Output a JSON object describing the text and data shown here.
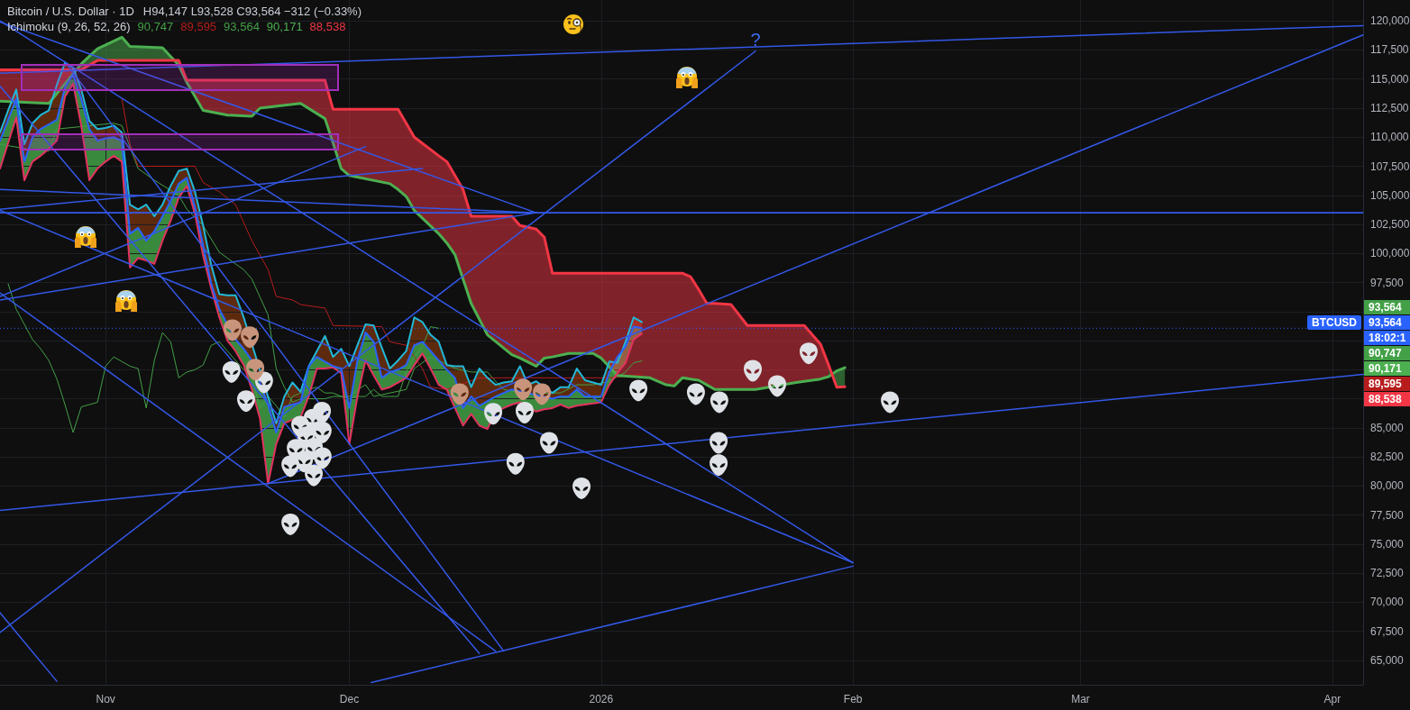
{
  "chart_data": {
    "type": "line",
    "title": "Bitcoin / U.S. Dollar · 1D",
    "subtitle": "H94,147 L93,528 C93,564 −312 (−0.33%)",
    "grid": true,
    "xlim": [
      "2025-10-19",
      "2026-04-04T19:00"
    ],
    "ylim": [
      62900,
      121800
    ],
    "xticks": [
      {
        "value": "2025-11-01",
        "label": "Nov"
      },
      {
        "value": "2025-12-01",
        "label": "Dec"
      },
      {
        "value": "2026-01-01",
        "label": "2026"
      },
      {
        "value": "2026-02-01",
        "label": "Feb"
      },
      {
        "value": "2026-03-01",
        "label": "Mar"
      },
      {
        "value": "2026-04-01",
        "label": "Apr"
      }
    ],
    "yticks": [
      {
        "value": 65000,
        "label": "65,000"
      },
      {
        "value": 67500,
        "label": "67,500"
      },
      {
        "value": 70000,
        "label": "70,000"
      },
      {
        "value": 72500,
        "label": "72,500"
      },
      {
        "value": 75000,
        "label": "75,000"
      },
      {
        "value": 77500,
        "label": "77,500"
      },
      {
        "value": 80000,
        "label": "80,000"
      },
      {
        "value": 82500,
        "label": "82,500"
      },
      {
        "value": 85000,
        "label": "85,000"
      },
      {
        "value": 87500,
        "label": null
      },
      {
        "value": 90000,
        "label": null
      },
      {
        "value": 92500,
        "label": null
      },
      {
        "value": 95000,
        "label": null
      },
      {
        "value": 97500,
        "label": "97,500"
      },
      {
        "value": 100000,
        "label": "100,000"
      },
      {
        "value": 102500,
        "label": "102,500"
      },
      {
        "value": 105000,
        "label": "105,000"
      },
      {
        "value": 107500,
        "label": "107,500"
      },
      {
        "value": 110000,
        "label": "110,000"
      },
      {
        "value": 112500,
        "label": "112,500"
      },
      {
        "value": 115000,
        "label": "115,000"
      },
      {
        "value": 117500,
        "label": "117,500"
      },
      {
        "value": 120000,
        "label": "120,000"
      }
    ],
    "series": [
      {
        "color": "#43a047",
        "x": [
          "2025-10-19",
          "2025-10-23",
          "2025-10-25",
          "2025-10-26",
          "2025-11-02",
          "2025-11-03",
          "2025-11-05",
          "2025-11-07",
          "2025-11-10",
          "2025-11-11",
          "2025-11-13",
          "2025-11-15",
          "2025-11-18",
          "2025-11-19",
          "2025-11-21",
          "2025-11-22",
          "2025-11-23",
          "2025-11-24",
          "2025-11-25",
          "2025-11-28",
          "2025-11-29",
          "2025-12-01",
          "2025-12-02",
          "2025-12-03",
          "2025-12-04",
          "2025-12-06",
          "2025-12-08",
          "2025-12-09",
          "2025-12-11",
          "2025-12-12",
          "2025-12-14",
          "2025-12-16",
          "2025-12-18",
          "2025-12-19",
          "2025-12-20",
          "2025-12-23",
          "2025-12-26",
          "2025-12-27",
          "2025-12-29",
          "2025-12-31",
          "2026-01-02",
          "2026-01-04",
          "2026-01-05",
          "2026-01-06"
        ],
        "values": [
          109400,
          108900,
          108800,
          110700,
          111200,
          111000,
          107300,
          106300,
          105000,
          103800,
          102400,
          100100,
          98600,
          97800,
          94700,
          90100,
          88500,
          87200,
          87500,
          87500,
          87700,
          87700,
          88300,
          88700,
          87700,
          88000,
          88300,
          90100,
          91100,
          90800,
          90100,
          89800,
          89800,
          89000,
          88300,
          87900,
          88000,
          88000,
          88700,
          88700,
          89000,
          89800,
          90600,
          90747
        ]
      },
      {
        "color": "#b71c1c",
        "x": [
          "2025-11-03",
          "2025-11-04",
          "2025-11-05",
          "2025-11-12",
          "2025-11-13",
          "2025-11-15",
          "2025-11-17",
          "2025-11-19",
          "2025-11-21",
          "2025-11-22",
          "2025-11-24",
          "2025-11-25",
          "2025-11-28",
          "2025-11-29",
          "2025-12-05",
          "2025-12-06",
          "2025-12-08",
          "2025-12-10",
          "2025-12-11",
          "2025-12-13",
          "2025-12-17",
          "2026-01-02",
          "2026-01-06"
        ],
        "values": [
          113300,
          109400,
          107500,
          107500,
          106100,
          105300,
          104200,
          101100,
          98600,
          96300,
          96000,
          95600,
          95300,
          93800,
          93700,
          92400,
          92100,
          90100,
          88500,
          88300,
          89300,
          89300,
          89595
        ]
      },
      {
        "color": "#43a047",
        "x": [
          "2025-10-20",
          "2025-10-21",
          "2025-10-22",
          "2025-10-23",
          "2025-10-24",
          "2025-10-25",
          "2025-10-26",
          "2025-10-27",
          "2025-10-28",
          "2025-10-29",
          "2025-10-30",
          "2025-10-31",
          "2025-11-01",
          "2025-11-02",
          "2025-11-03",
          "2025-11-04",
          "2025-11-05",
          "2025-11-06",
          "2025-11-07",
          "2025-11-08",
          "2025-11-09",
          "2025-11-10",
          "2025-11-11",
          "2025-11-12",
          "2025-11-13",
          "2025-11-14",
          "2025-11-15",
          "2025-11-16",
          "2025-11-17",
          "2025-11-18",
          "2025-11-19",
          "2025-11-20",
          "2025-11-21",
          "2025-11-22",
          "2025-11-23",
          "2025-11-24",
          "2025-11-25",
          "2025-11-26",
          "2025-11-27",
          "2025-11-28",
          "2025-11-29",
          "2025-11-30",
          "2025-12-01",
          "2025-12-02",
          "2025-12-03",
          "2025-12-04",
          "2025-12-05",
          "2025-12-06",
          "2025-12-07",
          "2025-12-08",
          "2025-12-09",
          "2025-12-10",
          "2025-12-11",
          "2025-12-12"
        ],
        "values": [
          97400,
          95200,
          93900,
          92600,
          91800,
          90800,
          89200,
          87000,
          84600,
          86800,
          87000,
          87200,
          90300,
          91100,
          90700,
          90300,
          90100,
          86700,
          90800,
          93200,
          92400,
          89300,
          89800,
          90000,
          90400,
          92100,
          92400,
          91600,
          90800,
          90000,
          89300,
          86700,
          87700,
          86900,
          85900,
          87700,
          88000,
          88300,
          88500,
          88000,
          88000,
          87700,
          87500,
          87700,
          87700,
          88300,
          87700,
          87700,
          87700,
          89800,
          91100,
          92000,
          93700,
          93564
        ]
      },
      {
        "color": "#4caf50",
        "x": [
          "2025-10-19",
          "2025-10-25",
          "2025-10-29",
          "2025-10-31",
          "2025-11-03",
          "2025-11-04",
          "2025-11-08",
          "2025-11-10",
          "2025-11-11",
          "2025-11-13",
          "2025-11-16",
          "2025-11-19",
          "2025-11-20",
          "2025-11-25",
          "2025-11-28",
          "2025-11-29",
          "2025-11-30",
          "2025-12-01",
          "2025-12-06",
          "2025-12-07",
          "2025-12-08",
          "2025-12-09",
          "2025-12-12",
          "2025-12-13",
          "2025-12-14",
          "2025-12-15",
          "2025-12-16",
          "2025-12-18",
          "2025-12-21",
          "2025-12-22",
          "2025-12-24",
          "2025-12-25",
          "2025-12-26",
          "2025-12-28",
          "2025-12-31",
          "2026-01-01",
          "2026-01-03",
          "2026-01-07",
          "2026-01-09",
          "2026-01-10",
          "2026-01-11",
          "2026-01-12",
          "2026-01-13",
          "2026-01-14",
          "2026-01-15",
          "2026-01-17",
          "2026-01-19",
          "2026-01-20",
          "2026-01-25",
          "2026-01-26",
          "2026-01-28",
          "2026-01-29",
          "2026-01-30",
          "2026-01-31"
        ],
        "values": [
          113100,
          112900,
          116300,
          117600,
          118600,
          117800,
          117700,
          116200,
          114700,
          112300,
          111900,
          111800,
          112500,
          112900,
          111600,
          109500,
          107300,
          106700,
          106000,
          105500,
          104900,
          103700,
          101700,
          100900,
          99900,
          97800,
          95700,
          93000,
          91300,
          91000,
          90300,
          91000,
          91100,
          91400,
          91400,
          91000,
          89500,
          89300,
          88700,
          88600,
          89300,
          89200,
          89100,
          88700,
          88300,
          88300,
          88300,
          88300,
          88900,
          89000,
          89200,
          89400,
          89900,
          90171
        ],
        "upper": [
          null,
          null,
          116300,
          117600,
          118600,
          117800,
          117700,
          116200,
          null,
          null,
          null,
          null,
          null,
          null,
          null,
          null,
          null,
          null,
          null,
          null,
          null,
          null,
          null,
          null,
          null,
          null,
          null,
          null,
          null,
          null,
          null,
          null,
          null,
          null,
          null,
          null,
          null,
          null,
          null,
          null,
          null,
          null,
          null,
          null,
          null,
          null,
          null,
          null,
          null,
          null,
          null,
          89400,
          89900,
          90171
        ],
        "lower": [
          null,
          null,
          115800,
          116600,
          116600,
          116600,
          116600,
          116600,
          null,
          null,
          null,
          null,
          null,
          null,
          null,
          null,
          null,
          null,
          null,
          null,
          null,
          null,
          null,
          null,
          null,
          null,
          null,
          null,
          null,
          null,
          null,
          null,
          null,
          null,
          null,
          null,
          null,
          null,
          null,
          null,
          null,
          null,
          null,
          null,
          null,
          null,
          null,
          null,
          null,
          null,
          null,
          90400,
          88500,
          88538
        ]
      },
      {
        "color": "#f23645",
        "x": [
          "2025-10-19",
          "2025-10-25",
          "2025-10-29",
          "2025-10-31",
          "2025-11-03",
          "2025-11-04",
          "2025-11-08",
          "2025-11-10",
          "2025-11-11",
          "2025-11-13",
          "2025-11-16",
          "2025-11-19",
          "2025-11-20",
          "2025-11-25",
          "2025-11-28",
          "2025-11-29",
          "2025-11-30",
          "2025-12-01",
          "2025-12-06",
          "2025-12-07",
          "2025-12-08",
          "2025-12-09",
          "2025-12-12",
          "2025-12-13",
          "2025-12-14",
          "2025-12-15",
          "2025-12-16",
          "2025-12-18",
          "2025-12-21",
          "2025-12-22",
          "2025-12-24",
          "2025-12-25",
          "2025-12-26",
          "2025-12-28",
          "2025-12-31",
          "2026-01-01",
          "2026-01-03",
          "2026-01-07",
          "2026-01-09",
          "2026-01-10",
          "2026-01-11",
          "2026-01-12",
          "2026-01-13",
          "2026-01-14",
          "2026-01-15",
          "2026-01-17",
          "2026-01-19",
          "2026-01-20",
          "2026-01-25",
          "2026-01-26",
          "2026-01-28",
          "2026-01-29",
          "2026-01-30",
          "2026-01-31"
        ],
        "values": [
          115800,
          115800,
          115800,
          116600,
          116600,
          116600,
          116600,
          116600,
          114900,
          114900,
          114900,
          114900,
          114900,
          114900,
          114900,
          112400,
          112400,
          112400,
          112400,
          112400,
          111200,
          110000,
          108400,
          107900,
          106700,
          105500,
          103200,
          103200,
          103200,
          102400,
          102100,
          101400,
          98300,
          98300,
          98300,
          98300,
          98300,
          98300,
          98300,
          98300,
          98300,
          98000,
          96900,
          95700,
          95700,
          95600,
          93800,
          93800,
          93800,
          93800,
          92200,
          90400,
          88500,
          88538
        ],
        "upper": [
          115800,
          115800,
          115800,
          null,
          null,
          null,
          null,
          116600,
          114900,
          114900,
          114900,
          114900,
          114900,
          114900,
          114900,
          112400,
          112400,
          112400,
          112400,
          112400,
          111200,
          110000,
          108400,
          107900,
          106700,
          105500,
          103200,
          103200,
          103200,
          102400,
          102100,
          101400,
          98300,
          98300,
          98300,
          98300,
          98300,
          98300,
          98300,
          98300,
          98300,
          98000,
          96900,
          95700,
          95700,
          95600,
          93800,
          93800,
          93800,
          93800,
          92200,
          90400,
          null,
          null
        ],
        "lower": [
          113100,
          112900,
          116300,
          null,
          null,
          null,
          null,
          116200,
          114700,
          112300,
          111900,
          111800,
          112500,
          112900,
          111600,
          109500,
          107300,
          106700,
          106000,
          105500,
          104900,
          103700,
          101700,
          100900,
          99900,
          97800,
          95700,
          93000,
          91300,
          91000,
          90300,
          91000,
          91100,
          91400,
          91400,
          91000,
          89500,
          89300,
          88700,
          88600,
          89300,
          89200,
          89100,
          88700,
          88300,
          88300,
          88300,
          88300,
          88900,
          89000,
          89200,
          89400,
          null,
          null
        ]
      },
      {
        "color": "#22b8d8",
        "x": [
          "2025-10-19",
          "2025-10-20",
          "2025-10-21",
          "2025-10-22",
          "2025-10-23",
          "2025-10-24",
          "2025-10-25",
          "2025-10-26",
          "2025-10-27",
          "2025-10-28",
          "2025-10-29",
          "2025-10-30",
          "2025-10-31",
          "2025-11-01",
          "2025-11-02",
          "2025-11-03",
          "2025-11-04",
          "2025-11-05",
          "2025-11-06",
          "2025-11-07",
          "2025-11-08",
          "2025-11-09",
          "2025-11-10",
          "2025-11-11",
          "2025-11-12",
          "2025-11-13",
          "2025-11-14",
          "2025-11-15",
          "2025-11-16",
          "2025-11-17",
          "2025-11-18",
          "2025-11-22",
          "2025-11-23",
          "2025-11-24",
          "2025-11-25",
          "2025-11-26",
          "2025-11-27",
          "2025-11-28",
          "2025-11-29",
          "2025-11-30",
          "2025-12-01",
          "2025-12-02",
          "2025-12-03",
          "2025-12-04",
          "2025-12-05",
          "2025-12-06",
          "2025-12-07",
          "2025-12-08",
          "2025-12-09",
          "2025-12-10",
          "2025-12-11",
          "2025-12-12",
          "2025-12-13",
          "2025-12-14",
          "2025-12-15",
          "2025-12-16",
          "2025-12-17",
          "2025-12-18",
          "2025-12-19",
          "2025-12-20",
          "2025-12-21",
          "2025-12-22",
          "2025-12-23",
          "2025-12-24",
          "2025-12-26",
          "2025-12-27",
          "2025-12-28",
          "2025-12-29",
          "2025-12-30",
          "2025-12-31",
          "2026-01-01",
          "2026-01-02",
          "2026-01-03",
          "2026-01-04",
          "2026-01-05",
          "2026-01-06"
        ],
        "values": [
          110400,
          112300,
          114100,
          109400,
          111200,
          111900,
          112300,
          114500,
          116400,
          116000,
          114100,
          111400,
          110700,
          110800,
          111000,
          110400,
          104200,
          103800,
          104200,
          103200,
          104200,
          105800,
          107100,
          107300,
          105300,
          102400,
          99000,
          96500,
          96400,
          96400,
          94500,
          85400,
          87700,
          88900,
          88100,
          90300,
          91600,
          92900,
          91100,
          91800,
          90300,
          92100,
          93900,
          93800,
          91900,
          90100,
          90800,
          91600,
          94500,
          94100,
          93000,
          92400,
          90400,
          90300,
          90300,
          88500,
          90100,
          89300,
          88700,
          88900,
          89000,
          90300,
          88700,
          89000,
          88000,
          88500,
          88500,
          90100,
          89100,
          88900,
          88700,
          90700,
          90600,
          92400,
          94500,
          94100
        ]
      },
      {
        "color": "#e3325f",
        "x": [
          "2025-10-19",
          "2025-10-20",
          "2025-10-21",
          "2025-10-22",
          "2025-10-23",
          "2025-10-24",
          "2025-10-25",
          "2025-10-26",
          "2025-10-27",
          "2025-10-28",
          "2025-10-29",
          "2025-10-30",
          "2025-10-31",
          "2025-11-01",
          "2025-11-02",
          "2025-11-03",
          "2025-11-04",
          "2025-11-05",
          "2025-11-06",
          "2025-11-07",
          "2025-11-08",
          "2025-11-09",
          "2025-11-10",
          "2025-11-11",
          "2025-11-12",
          "2025-11-13",
          "2025-11-14",
          "2025-11-15",
          "2025-11-16",
          "2025-11-17",
          "2025-11-18",
          "2025-11-19",
          "2025-11-20",
          "2025-11-21",
          "2025-11-22",
          "2025-11-23",
          "2025-11-24",
          "2025-11-25",
          "2025-11-26",
          "2025-11-27",
          "2025-11-28",
          "2025-11-29",
          "2025-11-30",
          "2025-12-01",
          "2025-12-02",
          "2025-12-03",
          "2025-12-04",
          "2025-12-05",
          "2025-12-06",
          "2025-12-07",
          "2025-12-08",
          "2025-12-09",
          "2025-12-10",
          "2025-12-11",
          "2025-12-12",
          "2025-12-13",
          "2025-12-14",
          "2025-12-15",
          "2025-12-16",
          "2025-12-17",
          "2025-12-18",
          "2025-12-19",
          "2025-12-20",
          "2025-12-21",
          "2025-12-22",
          "2025-12-24",
          "2025-12-25",
          "2025-12-26",
          "2025-12-27",
          "2025-12-28",
          "2025-12-29",
          "2025-12-30",
          "2025-12-31",
          "2026-01-01",
          "2026-01-02",
          "2026-01-03",
          "2026-01-04",
          "2026-01-05",
          "2026-01-06"
        ],
        "values": [
          107300,
          109500,
          111700,
          106300,
          107900,
          108400,
          109000,
          109700,
          113500,
          114600,
          111000,
          106300,
          107300,
          107900,
          108400,
          107900,
          98800,
          99600,
          99400,
          99100,
          101100,
          102800,
          104800,
          105800,
          103400,
          99800,
          97000,
          94500,
          92500,
          91600,
          90400,
          88300,
          85800,
          80200,
          83600,
          85400,
          85700,
          85900,
          87700,
          90100,
          90100,
          90200,
          89700,
          83600,
          87700,
          90800,
          89500,
          88300,
          88500,
          88900,
          89300,
          90400,
          91400,
          90100,
          88700,
          88300,
          86700,
          85200,
          86200,
          85200,
          84900,
          86400,
          86700,
          87000,
          87200,
          86400,
          86600,
          86700,
          87000,
          86700,
          86900,
          87000,
          87100,
          87200,
          88700,
          89700,
          90600,
          92600,
          93100
        ]
      },
      {
        "color": "#2962ff",
        "x": [
          "2025-10-19",
          "2025-10-20",
          "2025-10-21",
          "2025-10-22",
          "2025-10-23",
          "2025-10-24",
          "2025-10-25",
          "2025-10-26",
          "2025-10-27",
          "2025-10-28",
          "2025-10-29",
          "2025-10-30",
          "2025-10-31",
          "2025-11-01",
          "2025-11-02",
          "2025-11-03",
          "2025-11-04",
          "2025-11-05",
          "2025-11-06",
          "2025-11-07",
          "2025-11-08",
          "2025-11-09",
          "2025-11-10",
          "2025-11-11",
          "2025-11-12",
          "2025-11-13",
          "2025-11-14",
          "2025-11-15",
          "2025-11-17",
          "2025-11-18",
          "2025-11-19",
          "2025-11-21",
          "2025-11-22",
          "2025-11-23",
          "2025-11-24",
          "2025-11-25",
          "2025-11-26",
          "2025-11-27",
          "2025-11-28",
          "2025-11-29",
          "2025-11-30",
          "2025-12-01",
          "2025-12-02",
          "2025-12-03",
          "2025-12-04",
          "2025-12-05",
          "2025-12-06",
          "2025-12-07",
          "2025-12-08",
          "2025-12-09",
          "2025-12-10",
          "2025-12-11",
          "2025-12-12",
          "2025-12-13",
          "2025-12-14",
          "2025-12-15",
          "2025-12-16",
          "2025-12-17",
          "2025-12-19",
          "2025-12-20",
          "2025-12-21",
          "2025-12-26",
          "2025-12-27",
          "2025-12-28",
          "2025-12-29",
          "2025-12-30",
          "2025-12-31",
          "2026-01-01",
          "2026-01-02",
          "2026-01-03",
          "2026-01-04",
          "2026-01-05",
          "2026-01-06"
        ],
        "values": [
          109700,
          111500,
          113300,
          107900,
          110000,
          110700,
          111100,
          111500,
          114300,
          115400,
          113300,
          110700,
          109700,
          109900,
          110000,
          109700,
          101700,
          102200,
          101100,
          101900,
          103200,
          104500,
          106000,
          106500,
          104000,
          100700,
          97400,
          95200,
          92600,
          91800,
          90800,
          87000,
          84600,
          86800,
          87000,
          87200,
          90300,
          91100,
          90700,
          90300,
          90100,
          86700,
          90800,
          93200,
          92400,
          89300,
          89800,
          90000,
          90400,
          92100,
          92400,
          91600,
          90800,
          90000,
          89300,
          86700,
          87700,
          86900,
          87700,
          88000,
          88300,
          87500,
          87700,
          87700,
          88300,
          87700,
          87700,
          87700,
          89800,
          91100,
          92000,
          93700,
          93564
        ]
      },
      {
        "color": "#3358e8",
        "x": [
          "2025-10-19",
          "2026-04-04T19:00"
        ],
        "values": [
          115500,
          119600
        ]
      },
      {
        "color": "#3358e8",
        "x": [
          "2025-10-19",
          "2026-01-20"
        ],
        "values": [
          67400,
          117400
        ]
      },
      {
        "color": "#3358e8",
        "x": [
          "2025-11-21",
          "2026-04-04T19:00"
        ],
        "values": [
          80200,
          118800
        ]
      },
      {
        "color": "#3358e8",
        "x": [
          "2025-10-19",
          "2026-04-04T19:00"
        ],
        "values": [
          77900,
          89600
        ]
      },
      {
        "color": "#3358e8",
        "x": [
          "2025-10-19",
          "2025-12-24"
        ],
        "values": [
          96000,
          103500
        ]
      },
      {
        "color": "#3358e8",
        "x": [
          "2025-10-19",
          "2025-12-24"
        ],
        "values": [
          105500,
          103500
        ]
      },
      {
        "color": "#3358e8",
        "x": [
          "2025-10-19",
          "2025-12-24"
        ],
        "values": [
          119900,
          103500
        ]
      },
      {
        "color": "#3358e8",
        "x": [
          "2025-10-19",
          "2026-02-01"
        ],
        "values": [
          120000,
          73400
        ]
      },
      {
        "color": "#3358e8",
        "x": [
          "2025-10-19",
          "2026-02-01"
        ],
        "values": [
          103700,
          73400
        ]
      },
      {
        "color": "#3358e8",
        "x": [
          "2025-10-19",
          "2025-12-17"
        ],
        "values": [
          114400,
          65600
        ]
      },
      {
        "color": "#3358e8",
        "x": [
          "2025-10-27",
          "2025-12-20"
        ],
        "values": [
          116500,
          65800
        ]
      },
      {
        "color": "#3358e8",
        "x": [
          "2025-10-19",
          "2025-12-19"
        ],
        "values": [
          96600,
          65800
        ]
      },
      {
        "color": "#3358e8",
        "x": [
          "2025-12-03T17:00",
          "2026-02-01"
        ],
        "values": [
          63100,
          73100
        ]
      },
      {
        "color": "#3358e8",
        "x": [
          "2025-10-19",
          "2025-10-26"
        ],
        "values": [
          69100,
          63200
        ]
      },
      {
        "color": "#3358e8",
        "x": [
          "2025-10-19",
          "2025-12-10"
        ],
        "values": [
          103800,
          107300
        ]
      },
      {
        "color": "#3358e8",
        "x": [
          "2025-10-19",
          "2025-12-03"
        ],
        "values": [
          96300,
          109200
        ]
      },
      {
        "type": "scatter",
        "color": "#dfe2e6",
        "x": [
          "2025-11-16T12:00",
          "2025-11-18T07:00",
          "2025-11-20T12:00",
          "2025-11-27T15:00",
          "2025-11-24T23:00",
          "2025-11-26T12:00",
          "2025-11-27T17:00",
          "2025-11-25T17:00",
          "2025-11-24T10:00",
          "2025-11-26T15:00",
          "2025-11-25T10:00",
          "2025-11-27T17:00",
          "2025-11-23T18:00",
          "2025-11-26T15:00",
          "2025-11-23T18:00",
          "2025-12-18T17:00",
          "2025-12-22T14:00",
          "2025-12-25T14:00",
          "2025-12-21T11:00",
          "2025-12-29T14:00",
          "2026-01-05T14:00",
          "2026-01-12T16:00",
          "2026-01-15T13:00",
          "2026-01-19T16:00",
          "2026-01-22T16:00",
          "2026-01-26T13:00",
          "2026-01-15T11:00",
          "2026-01-15T11:00",
          "2026-02-05T13:00"
        ],
        "values": [
          89800,
          87300,
          88900,
          86300,
          85100,
          85700,
          84600,
          84200,
          83100,
          83200,
          82100,
          82400,
          81700,
          80900,
          76700,
          86200,
          86300,
          83700,
          81900,
          79800,
          88200,
          87900,
          87200,
          89900,
          88600,
          91400,
          83700,
          81800,
          87200
        ]
      },
      {
        "type": "scatter",
        "color": "#c8957c",
        "x": [
          "2025-11-16T15:00",
          "2025-11-18T18:00",
          "2025-11-19T10:00",
          "2025-12-14T14:00",
          "2025-12-22T09:00",
          "2025-12-24T17:00"
        ],
        "values": [
          93400,
          92800,
          90000,
          87900,
          88300,
          87900
        ]
      }
    ],
    "ref_lines": [
      {
        "axis": "y",
        "value": 103500,
        "color": "#3358e8"
      },
      {
        "axis": "y",
        "value": 93564,
        "label": "93,564",
        "color": "#2962ff",
        "line_style": "dotted"
      }
    ],
    "annotations": [
      "Ichimoku (9, 26, 52, 26)",
      "90,747",
      "89,595",
      "93,564",
      "90,171",
      "88,538",
      "90,747",
      "89,595",
      "93,564",
      "90,171",
      "88,538",
      "BTCUSD",
      "18:02:1",
      {
        "text": "?",
        "x": "2026-01-20",
        "y": 117400
      }
    ]
  }
}
